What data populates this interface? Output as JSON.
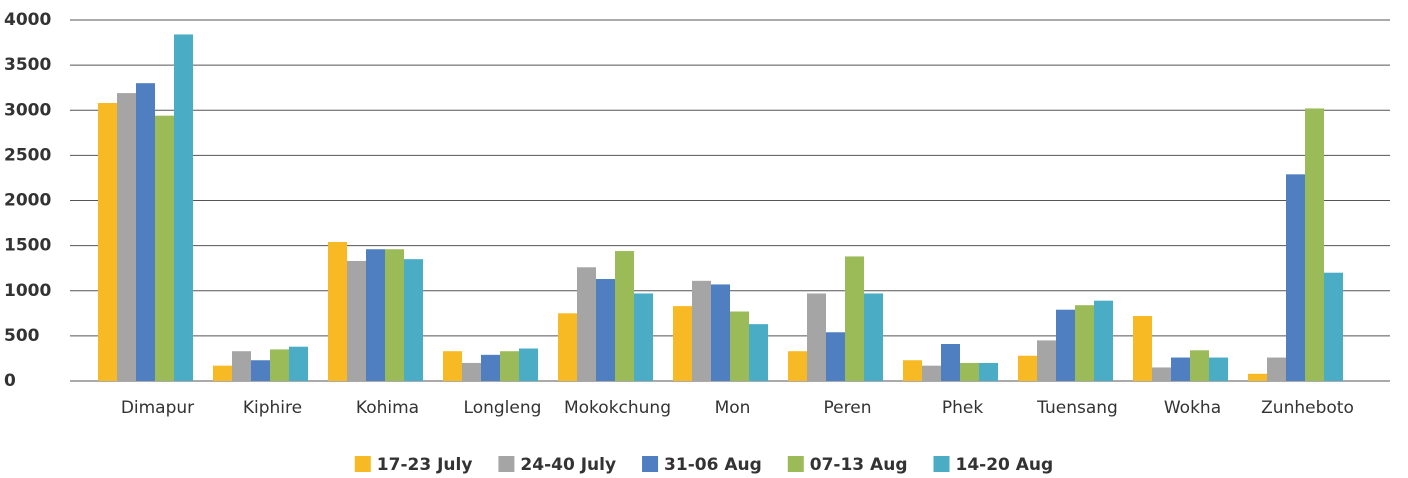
{
  "chart_data": {
    "type": "bar",
    "categories": [
      "Dimapur",
      "Kiphire",
      "Kohima",
      "Longleng",
      "Mokokchung",
      "Mon",
      "Peren",
      "Phek",
      "Tuensang",
      "Wokha",
      "Zunheboto"
    ],
    "series": [
      {
        "name": "17-23 July",
        "color": "#f7b924",
        "values": [
          3080,
          170,
          1540,
          330,
          750,
          830,
          330,
          230,
          280,
          720,
          80
        ]
      },
      {
        "name": "24-40 July",
        "color": "#a5a5a5",
        "values": [
          3190,
          330,
          1330,
          200,
          1260,
          1110,
          970,
          170,
          450,
          150,
          260
        ]
      },
      {
        "name": "31-06 Aug",
        "color": "#4f7fc0",
        "values": [
          3300,
          230,
          1460,
          290,
          1130,
          1070,
          540,
          410,
          790,
          260,
          2290
        ]
      },
      {
        "name": "07-13 Aug",
        "color": "#9bbb59",
        "values": [
          2940,
          350,
          1460,
          330,
          1440,
          770,
          1380,
          200,
          840,
          340,
          3020
        ]
      },
      {
        "name": "14-20 Aug",
        "color": "#4bacc6",
        "values": [
          3840,
          380,
          1350,
          360,
          970,
          630,
          970,
          200,
          890,
          260,
          1200
        ]
      }
    ],
    "ylim": [
      0,
      4000
    ],
    "yticks": [
      0,
      500,
      1000,
      1500,
      2000,
      2500,
      3000,
      3500,
      4000
    ],
    "grid": true,
    "legend": "bottom"
  }
}
